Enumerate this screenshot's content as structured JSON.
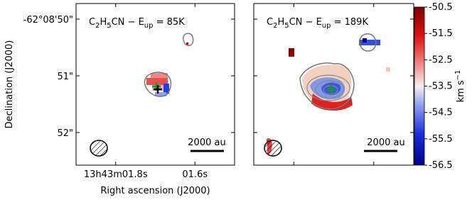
{
  "chart_data": [
    {
      "type": "map",
      "title_parts": [
        "C",
        "2",
        "H",
        "5",
        "CN − E",
        "up",
        " = 85K"
      ],
      "xlabel": "Right ascension (J2000)",
      "ylabel": "Declination (J2000)",
      "xlim": [
        1.9,
        1.5
      ],
      "ylim": [
        52.575,
        49.725
      ],
      "xticks": [
        {
          "value": 1.8,
          "label": "13h43m01.8s"
        },
        {
          "value": 1.6,
          "label": "01.6s"
        }
      ],
      "yticks": [
        {
          "value": 50,
          "label": "-62°08'50\""
        },
        {
          "value": 51,
          "label": "51\""
        },
        {
          "value": 52,
          "label": "52\""
        }
      ],
      "scalebar": "2000 au"
    },
    {
      "type": "map",
      "title_parts": [
        "C",
        "2",
        "H",
        "5",
        "CN − E",
        "up",
        " = 189K"
      ],
      "xlim": [
        1.9,
        1.5
      ],
      "ylim": [
        52.575,
        49.725
      ],
      "xticks": [
        1.8,
        1.6
      ],
      "yticks": [
        50,
        51,
        52
      ],
      "scalebar": "2000 au"
    },
    {
      "type": "colorbar",
      "label_parts": [
        "km s",
        "−1"
      ],
      "ylim": [
        -56.5,
        -50.5
      ],
      "yticks": [
        -56.5,
        -55.5,
        -54.5,
        -53.5,
        -52.5,
        -51.5,
        -50.5
      ]
    }
  ]
}
